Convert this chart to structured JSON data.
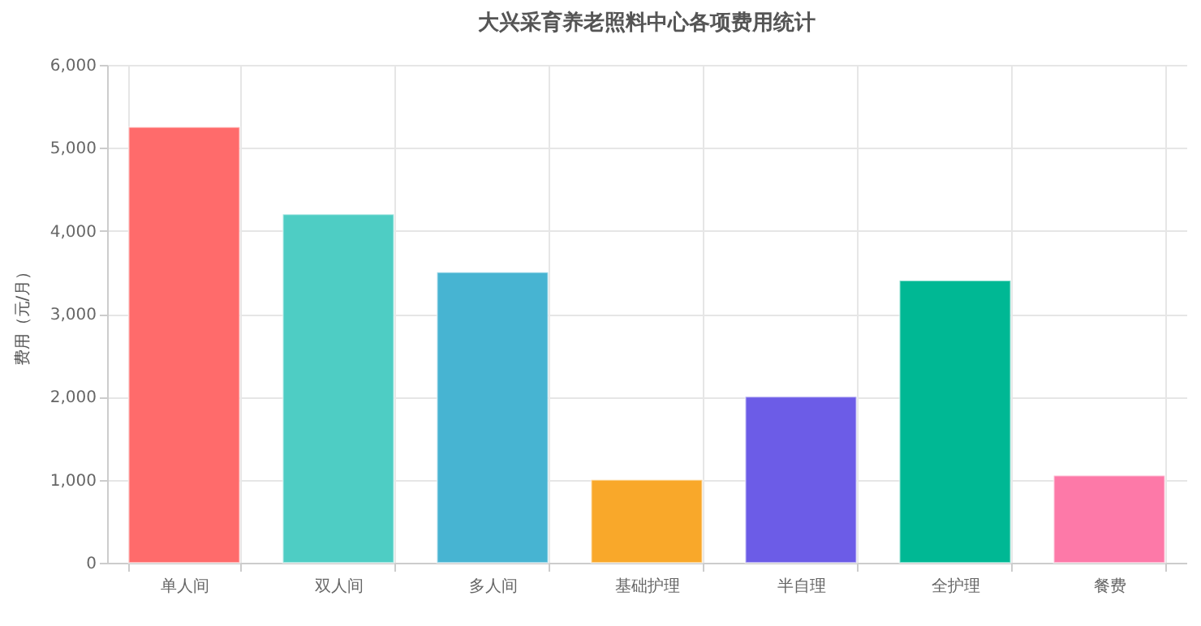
{
  "chart_data": {
    "type": "bar",
    "title": "大兴采育养老照料中心各项费用统计",
    "ylabel": "费用（元/月）",
    "categories": [
      "单人间",
      "双人间",
      "多人间",
      "基础护理",
      "半自理",
      "全护理",
      "餐费"
    ],
    "values": [
      5250,
      4200,
      3500,
      1000,
      2000,
      3400,
      1050
    ],
    "colors": [
      "#ff6b6b",
      "#4ecdc4",
      "#47b4d2",
      "#f9a82a",
      "#6c5ce7",
      "#00b894",
      "#fd79a8"
    ],
    "ylim": [
      0,
      6000
    ],
    "yticks": [
      0,
      {
        "value": 1000,
        "label": "1,000"
      },
      {
        "value": 2000,
        "label": "2,000"
      },
      {
        "value": 3000,
        "label": "3,000"
      },
      {
        "value": 4000,
        "label": "4,000"
      },
      {
        "value": 5000,
        "label": "5,000"
      },
      {
        "value": 6000,
        "label": "6,000"
      }
    ],
    "grid": true
  }
}
